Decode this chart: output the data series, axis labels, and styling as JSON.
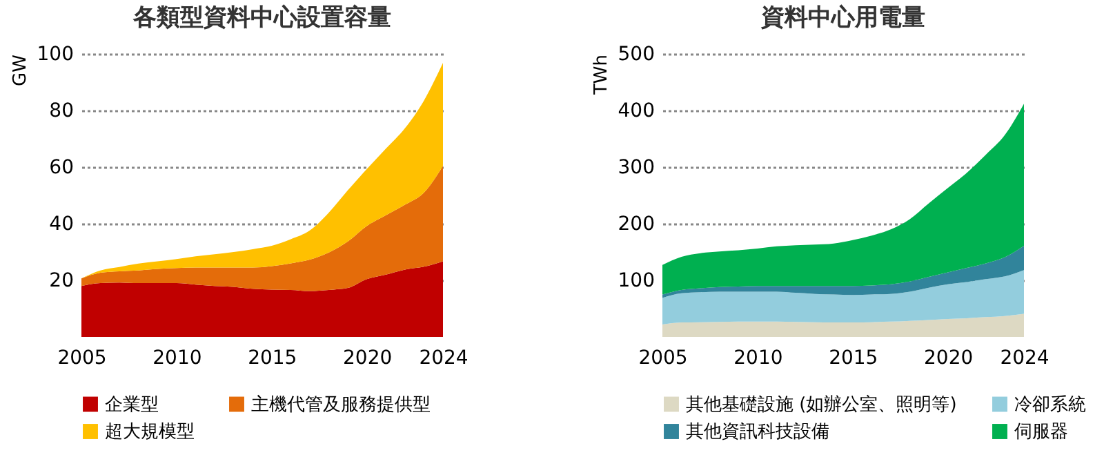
{
  "chart_data": [
    {
      "type": "area",
      "title": "各類型資料中心設置容量",
      "ylabel": "GW",
      "stacked": true,
      "x": [
        2005,
        2006,
        2007,
        2008,
        2009,
        2010,
        2011,
        2012,
        2013,
        2014,
        2015,
        2016,
        2017,
        2018,
        2019,
        2020,
        2021,
        2022,
        2023,
        2024
      ],
      "series": [
        {
          "name": "企業型",
          "color": "#c00000",
          "values": [
            18,
            19,
            19.2,
            19,
            19,
            19,
            18.5,
            18,
            17.7,
            17,
            16.7,
            16.6,
            16.2,
            16.6,
            17.3,
            20.4,
            22,
            23.8,
            24.8,
            26.7
          ]
        },
        {
          "name": "主機代管及服務提供型",
          "color": "#e46c0a",
          "values": [
            2.7,
            3.7,
            4,
            4.5,
            5,
            5.3,
            6,
            6.5,
            6.8,
            7.5,
            8.3,
            9.4,
            11.1,
            13.2,
            16.4,
            18.8,
            21,
            22.9,
            26.2,
            33.7
          ]
        },
        {
          "name": "超大規模型",
          "color": "#ffc000",
          "values": [
            0,
            0.8,
            1.5,
            2.4,
            2.7,
            3.2,
            4,
            4.7,
            5.5,
            6.5,
            7.2,
            8.5,
            10.3,
            14.1,
            18.1,
            20.1,
            23.5,
            27,
            32.5,
            36.4
          ]
        }
      ],
      "xlim": [
        2005,
        2024
      ],
      "xticks": [
        2005,
        2010,
        2015,
        2020,
        2024
      ],
      "ylim": [
        0,
        100
      ],
      "yticks": [
        20,
        40,
        60,
        80,
        100
      ],
      "grid": "y",
      "legend": "bottom"
    },
    {
      "type": "area",
      "title": "資料中心用電量",
      "ylabel": "TWh",
      "stacked": true,
      "x": [
        2005,
        2006,
        2007,
        2008,
        2009,
        2010,
        2011,
        2012,
        2013,
        2014,
        2015,
        2016,
        2017,
        2018,
        2019,
        2020,
        2021,
        2022,
        2023,
        2024
      ],
      "series": [
        {
          "name": "其他基礎設施 (如辦公室、照明等)",
          "color": "#ddd9c3",
          "values": [
            22,
            25.5,
            26,
            26.5,
            27,
            27,
            27,
            26.5,
            26,
            25.5,
            25.5,
            26,
            27,
            28.5,
            30,
            31.7,
            33,
            35,
            37,
            41
          ]
        },
        {
          "name": "冷卻系統",
          "color": "#93cddd",
          "values": [
            47,
            51.5,
            53,
            53.5,
            53,
            53,
            53,
            51.5,
            50,
            49.5,
            48.5,
            49,
            49,
            51.5,
            57,
            61.3,
            64,
            67,
            70,
            77
          ]
        },
        {
          "name": "其他資訊科技設備",
          "color": "#31849b",
          "values": [
            6,
            6,
            7,
            8,
            9,
            10,
            10,
            12,
            14,
            15,
            16,
            16,
            17,
            18,
            19,
            21,
            25,
            28,
            34,
            43
          ]
        },
        {
          "name": "伺服器",
          "color": "#00b050",
          "values": [
            52,
            58.5,
            62,
            63,
            64,
            66,
            70,
            72,
            73,
            75,
            81,
            88,
            97,
            110,
            130,
            149,
            168,
            192,
            216,
            251
          ]
        }
      ],
      "xlim": [
        2005,
        2024
      ],
      "xticks": [
        2005,
        2010,
        2015,
        2020,
        2024
      ],
      "ylim": [
        0,
        500
      ],
      "yticks": [
        100,
        200,
        300,
        400,
        500
      ],
      "grid": "y",
      "legend": "bottom"
    }
  ]
}
